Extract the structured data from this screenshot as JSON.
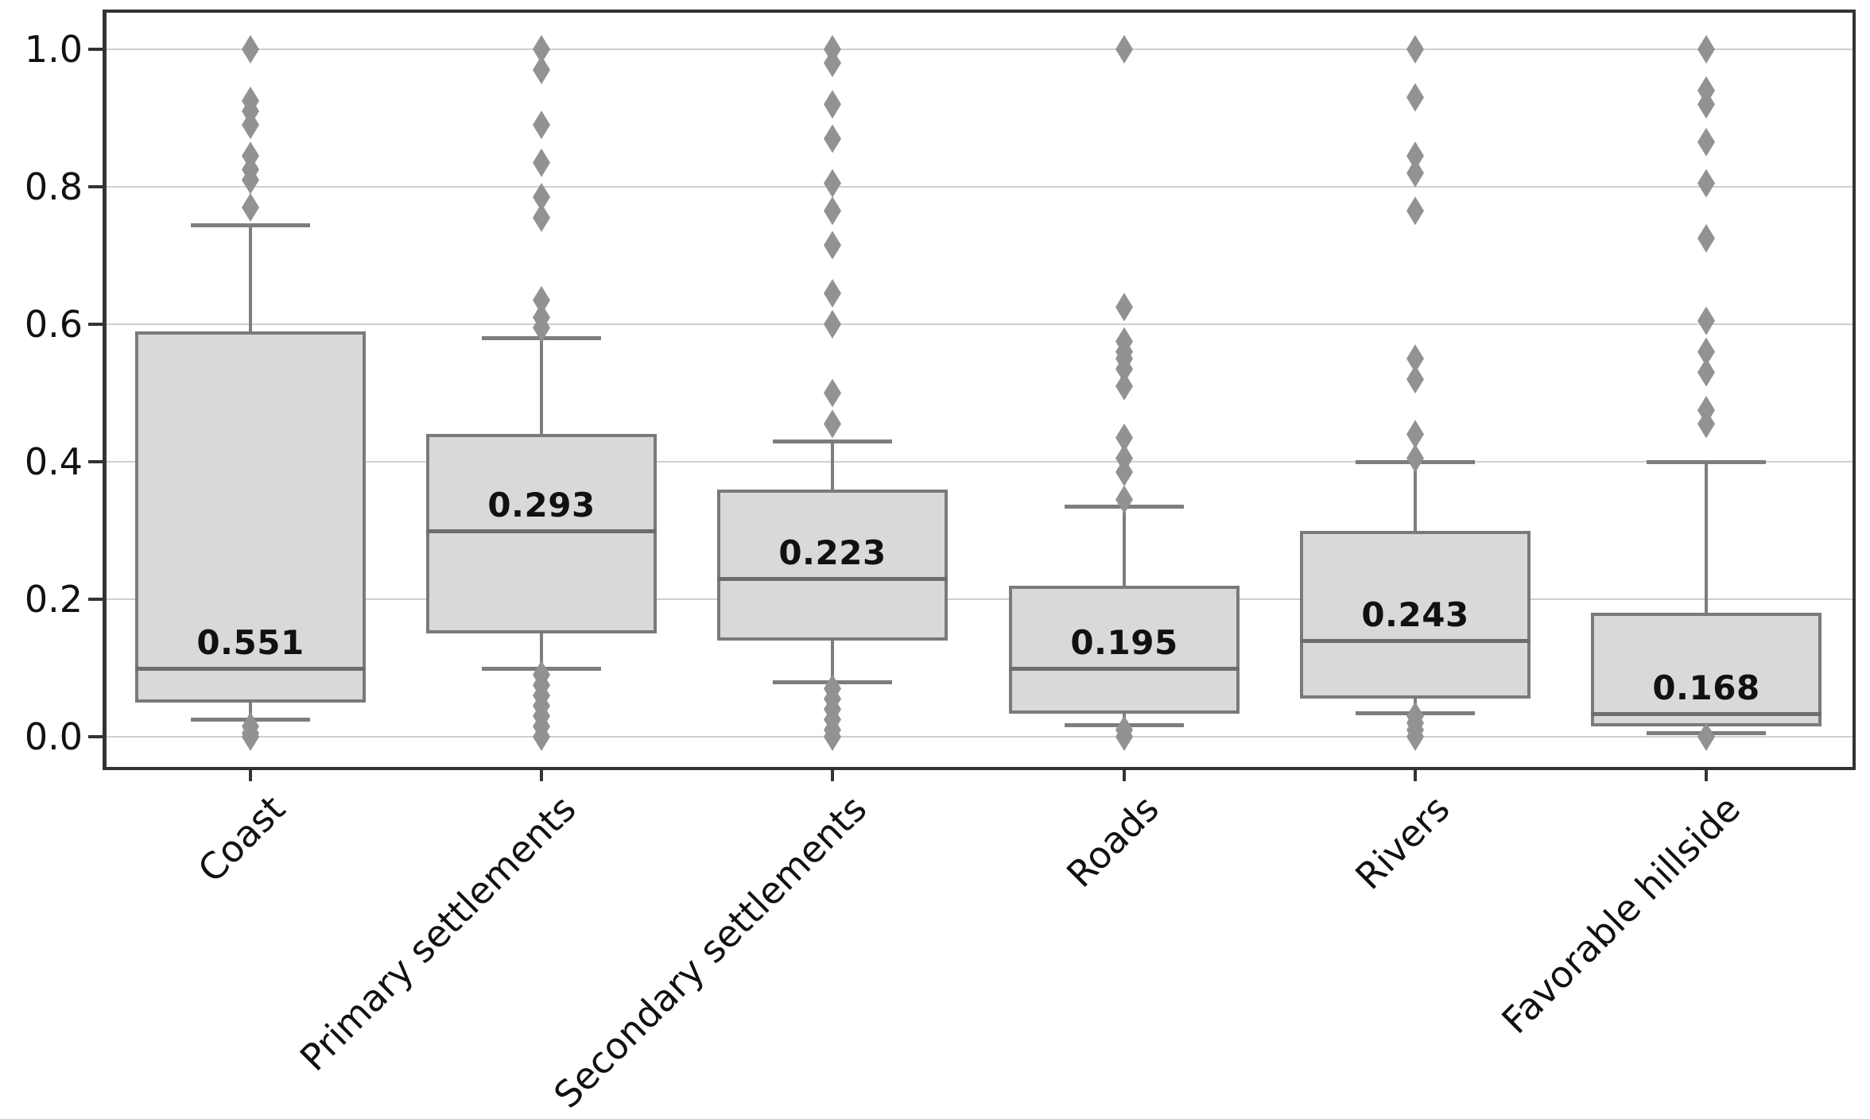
{
  "chart_data": {
    "type": "box",
    "title": "",
    "xlabel": "",
    "ylabel": "",
    "ylim": [
      0.0,
      1.0
    ],
    "grid": "horizontal gridlines on",
    "legend": "none",
    "marker": "diamond outliers",
    "ytick_labels": [
      "0.0",
      "0.2",
      "0.4",
      "0.6",
      "0.8",
      "1.0"
    ],
    "ytick_values": [
      0.0,
      0.2,
      0.4,
      0.6,
      0.8,
      1.0
    ],
    "categories": [
      "Coast",
      "Primary settlements",
      "Secondary settlements",
      "Roads",
      "Rivers",
      "Favorable hillside"
    ],
    "series": [
      {
        "category": "Coast",
        "mean_label": "0.551",
        "q1": 0.05,
        "median": 0.1,
        "q3": 0.59,
        "whisker_low": 0.025,
        "whisker_high": 0.745,
        "outliers": [
          1.0,
          0.925,
          0.91,
          0.89,
          0.845,
          0.825,
          0.81,
          0.77,
          0.015,
          0.005,
          0.0
        ]
      },
      {
        "category": "Primary settlements",
        "mean_label": "0.293",
        "q1": 0.15,
        "median": 0.3,
        "q3": 0.44,
        "whisker_low": 0.1,
        "whisker_high": 0.58,
        "outliers": [
          1.0,
          0.97,
          0.89,
          0.835,
          0.785,
          0.755,
          0.635,
          0.61,
          0.595,
          0.09,
          0.075,
          0.06,
          0.045,
          0.03,
          0.015,
          0.0
        ]
      },
      {
        "category": "Secondary settlements",
        "mean_label": "0.223",
        "q1": 0.14,
        "median": 0.23,
        "q3": 0.36,
        "whisker_low": 0.08,
        "whisker_high": 0.43,
        "outliers": [
          1.0,
          0.98,
          0.92,
          0.87,
          0.805,
          0.765,
          0.715,
          0.645,
          0.6,
          0.5,
          0.455,
          0.07,
          0.055,
          0.04,
          0.025,
          0.01,
          0.0
        ]
      },
      {
        "category": "Roads",
        "mean_label": "0.195",
        "q1": 0.033,
        "median": 0.1,
        "q3": 0.22,
        "whisker_low": 0.017,
        "whisker_high": 0.335,
        "outliers": [
          1.0,
          0.625,
          0.575,
          0.56,
          0.55,
          0.535,
          0.51,
          0.435,
          0.405,
          0.385,
          0.345,
          0.01,
          0.0
        ]
      },
      {
        "category": "Rivers",
        "mean_label": "0.243",
        "q1": 0.055,
        "median": 0.14,
        "q3": 0.3,
        "whisker_low": 0.035,
        "whisker_high": 0.4,
        "outliers": [
          1.0,
          0.93,
          0.845,
          0.82,
          0.765,
          0.55,
          0.52,
          0.44,
          0.405,
          0.03,
          0.02,
          0.01,
          0.0
        ]
      },
      {
        "category": "Favorable hillside",
        "mean_label": "0.168",
        "q1": 0.015,
        "median": 0.033,
        "q3": 0.18,
        "whisker_low": 0.006,
        "whisker_high": 0.4,
        "outliers": [
          1.0,
          0.94,
          0.92,
          0.865,
          0.805,
          0.725,
          0.605,
          0.56,
          0.53,
          0.475,
          0.455,
          0.0
        ]
      }
    ],
    "colors": {
      "background": "#ffffff",
      "box_fill": "#d9d9d9",
      "box_edge": "#7a7a7a",
      "median_line": "#6d6d6d",
      "whisker": "#7d7d7d",
      "outlier_marker": "#929292",
      "gridline": "#cfcfcf",
      "spine": "#333333",
      "text": "#111111"
    }
  }
}
